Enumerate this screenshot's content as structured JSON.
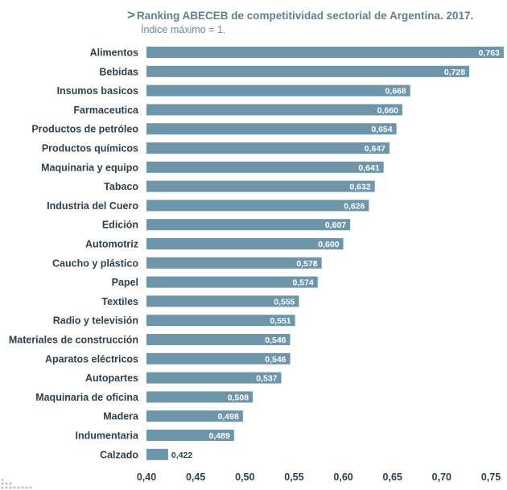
{
  "chart_data": {
    "type": "bar",
    "orientation": "horizontal",
    "title_arrow": ">",
    "title": "Ranking ABECEB de competitividad sectorial de Argentina. 2017.",
    "subtitle": "Índice máximo = 1.",
    "categories": [
      "Alimentos",
      "Bebidas",
      "Insumos basicos",
      "Farmaceutica",
      "Productos de petróleo",
      "Productos químicos",
      "Maquinaria y equipo",
      "Tabaco",
      "Industria del Cuero",
      "Edición",
      "Automotriz",
      "Caucho y plástico",
      "Papel",
      "Textiles",
      "Radio y televisión",
      "Materiales de construcción",
      "Aparatos eléctricos",
      "Autopartes",
      "Maquinaria de oficina",
      "Madera",
      "Indumentaria",
      "Calzado"
    ],
    "values": [
      0.763,
      0.728,
      0.668,
      0.66,
      0.654,
      0.647,
      0.641,
      0.632,
      0.626,
      0.607,
      0.6,
      0.578,
      0.574,
      0.555,
      0.551,
      0.546,
      0.546,
      0.537,
      0.508,
      0.498,
      0.489,
      0.422
    ],
    "value_labels": [
      "0,763",
      "0,728",
      "0,668",
      "0,660",
      "0,654",
      "0,647",
      "0,641",
      "0,632",
      "0,626",
      "0,607",
      "0,600",
      "0,578",
      "0,574",
      "0,555",
      "0,551",
      "0,546",
      "0,546",
      "0,537",
      "0,508",
      "0,498",
      "0,489",
      "0,422"
    ],
    "xlim": [
      0.4,
      0.75
    ],
    "xticks": [
      0.4,
      0.45,
      0.5,
      0.55,
      0.6,
      0.65,
      0.7,
      0.75
    ],
    "xtick_labels": [
      "0,40",
      "0,45",
      "0,50",
      "0,55",
      "0,60",
      "0,65",
      "0,70",
      "0,75"
    ],
    "grid": false,
    "colors": {
      "bar": "#6e96aa",
      "title": "#5f7f93",
      "text": "#2e3f4d"
    }
  }
}
